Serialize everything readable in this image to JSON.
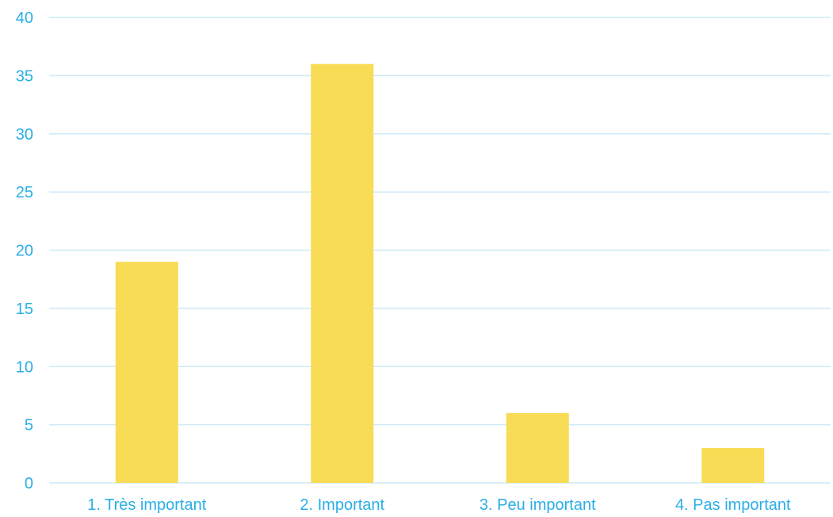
{
  "chart_data": {
    "type": "bar",
    "categories": [
      "1. Très important",
      "2. Important",
      "3. Peu important",
      "4. Pas important"
    ],
    "values": [
      19,
      36,
      6,
      3
    ],
    "title": "",
    "xlabel": "",
    "ylabel": "",
    "ylim": [
      0,
      40
    ],
    "yticks": [
      "0",
      "5",
      "10",
      "15",
      "20",
      "25",
      "30",
      "35",
      "40"
    ],
    "grid": true,
    "legend": "none"
  },
  "colors": {
    "bar": "#f9dc55",
    "grid": "#cdeaf7",
    "axis_text": "#2aaee6"
  }
}
